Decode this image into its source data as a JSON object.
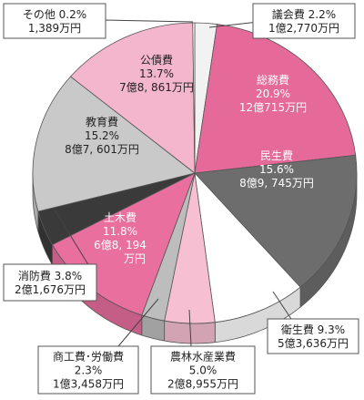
{
  "chart_data": {
    "type": "pie",
    "title": "",
    "slices": [
      {
        "name": "議会費",
        "percent_label": "2.2%",
        "percent": 2.2,
        "amount": "1億2,770万円",
        "color": "#f2f2f2",
        "text_color": "#222222"
      },
      {
        "name": "総務費",
        "percent_label": "20.9%",
        "percent": 20.9,
        "amount": "12億715万円",
        "color": "#e56a9a",
        "text_color": "#ffffff"
      },
      {
        "name": "民生費",
        "percent_label": "15.6%",
        "percent": 15.6,
        "amount": "8億9, 745万円",
        "color": "#6d6d6d",
        "text_color": "#ffffff"
      },
      {
        "name": "衛生費",
        "percent_label": "9.3%",
        "percent": 9.3,
        "amount": "5億3,636万円",
        "color": "#ffffff",
        "text_color": "#222222"
      },
      {
        "name": "農林水産業費",
        "percent_label": "5.0%",
        "percent": 5.0,
        "amount": "2億8,955万円",
        "color": "#f6c0d2",
        "text_color": "#222222"
      },
      {
        "name": "商工費･労働費",
        "percent_label": "2.3%",
        "percent": 2.3,
        "amount": "1億3,458万円",
        "color": "#bdbdbd",
        "text_color": "#222222"
      },
      {
        "name": "土木費",
        "percent_label": "11.8%",
        "percent": 11.8,
        "amount": "6億8, 194\n万円",
        "color": "#e86f9e",
        "text_color": "#ffffff"
      },
      {
        "name": "消防費",
        "percent_label": "3.8%",
        "percent": 3.8,
        "amount": "2億1,676万円",
        "color": "#3a3a3a",
        "text_color": "#222222"
      },
      {
        "name": "教育費",
        "percent_label": "15.2%",
        "percent": 15.2,
        "amount": "8億7, 601万円",
        "color": "#c9c9c9",
        "text_color": "#222222"
      },
      {
        "name": "公債費",
        "percent_label": "13.7%",
        "percent": 13.7,
        "amount": "7億8, 861万円",
        "color": "#f3b6cc",
        "text_color": "#222222"
      },
      {
        "name": "その他",
        "percent_label": "0.2%",
        "percent": 0.2,
        "amount": "1,389万円",
        "color": "#ffffff",
        "text_color": "#222222"
      }
    ]
  }
}
